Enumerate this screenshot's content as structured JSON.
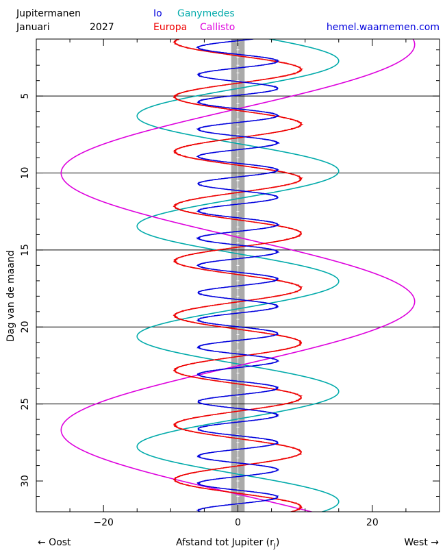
{
  "header": {
    "title": "Jupitermanen",
    "month": "Januari",
    "year": "2027",
    "website": "hemel.waarnemen.com"
  },
  "legend": [
    {
      "name": "Io",
      "color": "#0000dd"
    },
    {
      "name": "Ganymedes",
      "color": "#00aaaa"
    },
    {
      "name": "Europa",
      "color": "#ee0000"
    },
    {
      "name": "Callisto",
      "color": "#dd00dd"
    }
  ],
  "footer": {
    "left": "← Oost",
    "center": "Afstand tot Jupiter (r",
    "center_sub": "J",
    "center_end": ")",
    "right": "West →"
  },
  "chart_data": {
    "type": "line",
    "title": "Jupitermanen",
    "xlabel": "Afstand tot Jupiter (rJ)",
    "ylabel": "Dag van de maand",
    "xlim": [
      -30,
      30
    ],
    "ylim": [
      1.3,
      32
    ],
    "y_inverted": true,
    "x_ticks": [
      -20,
      0,
      20
    ],
    "y_ticks": [
      5,
      10,
      15,
      20,
      25,
      30
    ],
    "horizontal_lines": [
      5,
      10,
      15,
      20,
      25
    ],
    "jupiter_band_halfwidth": 1,
    "series": [
      {
        "name": "Io",
        "color": "#0000dd",
        "amplitude": 5.9,
        "period_days": 1.769,
        "max_east_day": 1.85,
        "wobble": 0.08
      },
      {
        "name": "Europa",
        "color": "#ee0000",
        "amplitude": 9.4,
        "period_days": 3.551,
        "max_east_day": 1.5,
        "wobble": 0.08
      },
      {
        "name": "Ganymedes",
        "color": "#00aaaa",
        "amplitude": 15.0,
        "period_days": 7.155,
        "max_east_day": 6.3,
        "wobble": 0.0
      },
      {
        "name": "Callisto",
        "color": "#dd00dd",
        "amplitude": 26.3,
        "period_days": 16.689,
        "max_east_day": 10.0,
        "wobble": 0.0
      }
    ]
  }
}
